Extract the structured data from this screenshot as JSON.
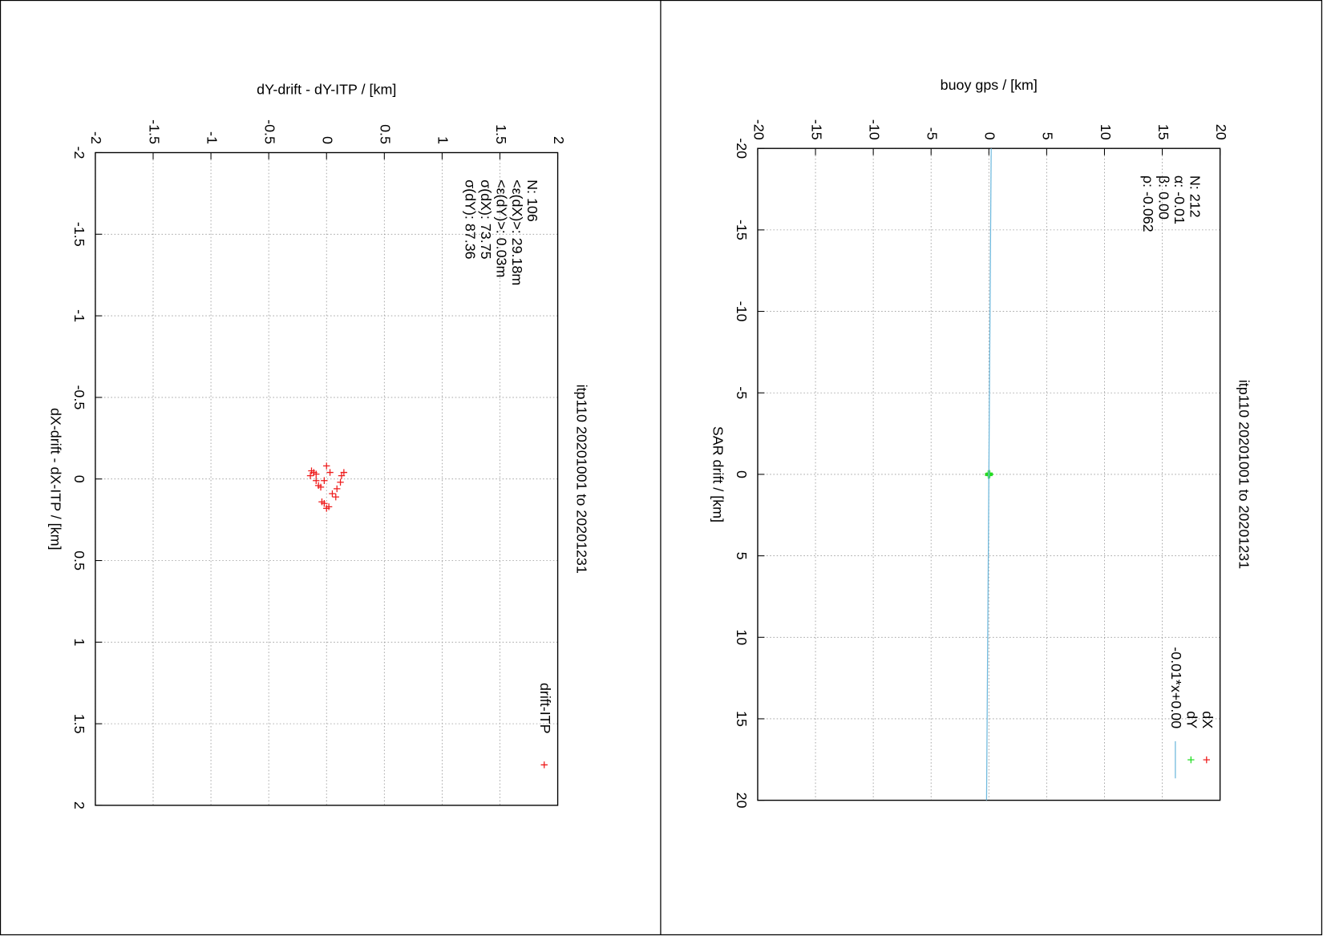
{
  "chart_data": [
    {
      "type": "scatter",
      "title": "itp110 20201001 to 20201231",
      "x_label": "dX-drift - dX-ITP / [km]",
      "y_label": "dY-drift - dY-ITP / [km]",
      "xlim": [
        -2,
        2
      ],
      "ylim": [
        -2,
        2
      ],
      "xticks": [
        -2,
        -1.5,
        -1,
        -0.5,
        0,
        0.5,
        1,
        1.5,
        2
      ],
      "yticks": [
        -2,
        -1.5,
        -1,
        -0.5,
        0,
        0.5,
        1,
        1.5,
        2
      ],
      "grid": true,
      "annotations": [
        "N: 106",
        "<ε(dX)>: 29.18m",
        "<ε(dY)>: 0.03m",
        "σ(dX):  73.75",
        "σ(dY):  87.36"
      ],
      "series": [
        {
          "name": "drift-ITP",
          "color": "#ee1c1c",
          "x": [
            -0.05,
            -0.03,
            -0.02,
            0.04,
            0.01,
            -0.08,
            -0.04,
            0.06,
            0.09,
            -0.02,
            -0.04,
            0.02,
            0.15,
            0.17,
            0.14,
            0.18,
            0.11,
            0.01,
            -0.04,
            0.05
          ],
          "values": [
            -0.13,
            -0.09,
            -0.14,
            -0.07,
            -0.02,
            0.0,
            0.03,
            0.09,
            0.05,
            0.13,
            0.15,
            0.12,
            -0.02,
            0.02,
            -0.04,
            0.0,
            0.08,
            -0.09,
            -0.11,
            -0.05
          ]
        }
      ]
    },
    {
      "type": "scatter",
      "title": "itp110 20201001 to 20201231",
      "x_label": "SAR drift / [km]",
      "y_label": "buoy gps / [km]",
      "xlim": [
        -20,
        20
      ],
      "ylim": [
        -20,
        20
      ],
      "xticks": [
        -20,
        -15,
        -10,
        -5,
        0,
        5,
        10,
        15,
        20
      ],
      "yticks": [
        -20,
        -15,
        -10,
        -5,
        0,
        5,
        10,
        15,
        20
      ],
      "grid": true,
      "annotations": [
        "N: 212",
        "α: -0.01",
        "β: 0.00",
        "ρ: -0.062"
      ],
      "series": [
        {
          "name": "dX",
          "color": "#ee1c1c",
          "x": [
            0.02,
            -0.03,
            0.05,
            0.0,
            -0.06,
            0.04
          ],
          "values": [
            0.03,
            -0.02,
            0.0,
            0.05,
            0.01,
            -0.04
          ]
        },
        {
          "name": "dY",
          "color": "#22dd22",
          "x": [
            0.0,
            -0.08,
            0.06,
            0.03,
            -0.04,
            0.08,
            -0.02,
            0.05
          ],
          "values": [
            0.0,
            0.04,
            -0.05,
            0.07,
            -0.06,
            0.02,
            0.08,
            -0.03
          ]
        },
        {
          "name": "-0.01*x+0.00",
          "type": "line",
          "color": "#6fb9dd",
          "x": [
            -20,
            20
          ],
          "values": [
            0.2,
            -0.2
          ]
        }
      ]
    }
  ]
}
